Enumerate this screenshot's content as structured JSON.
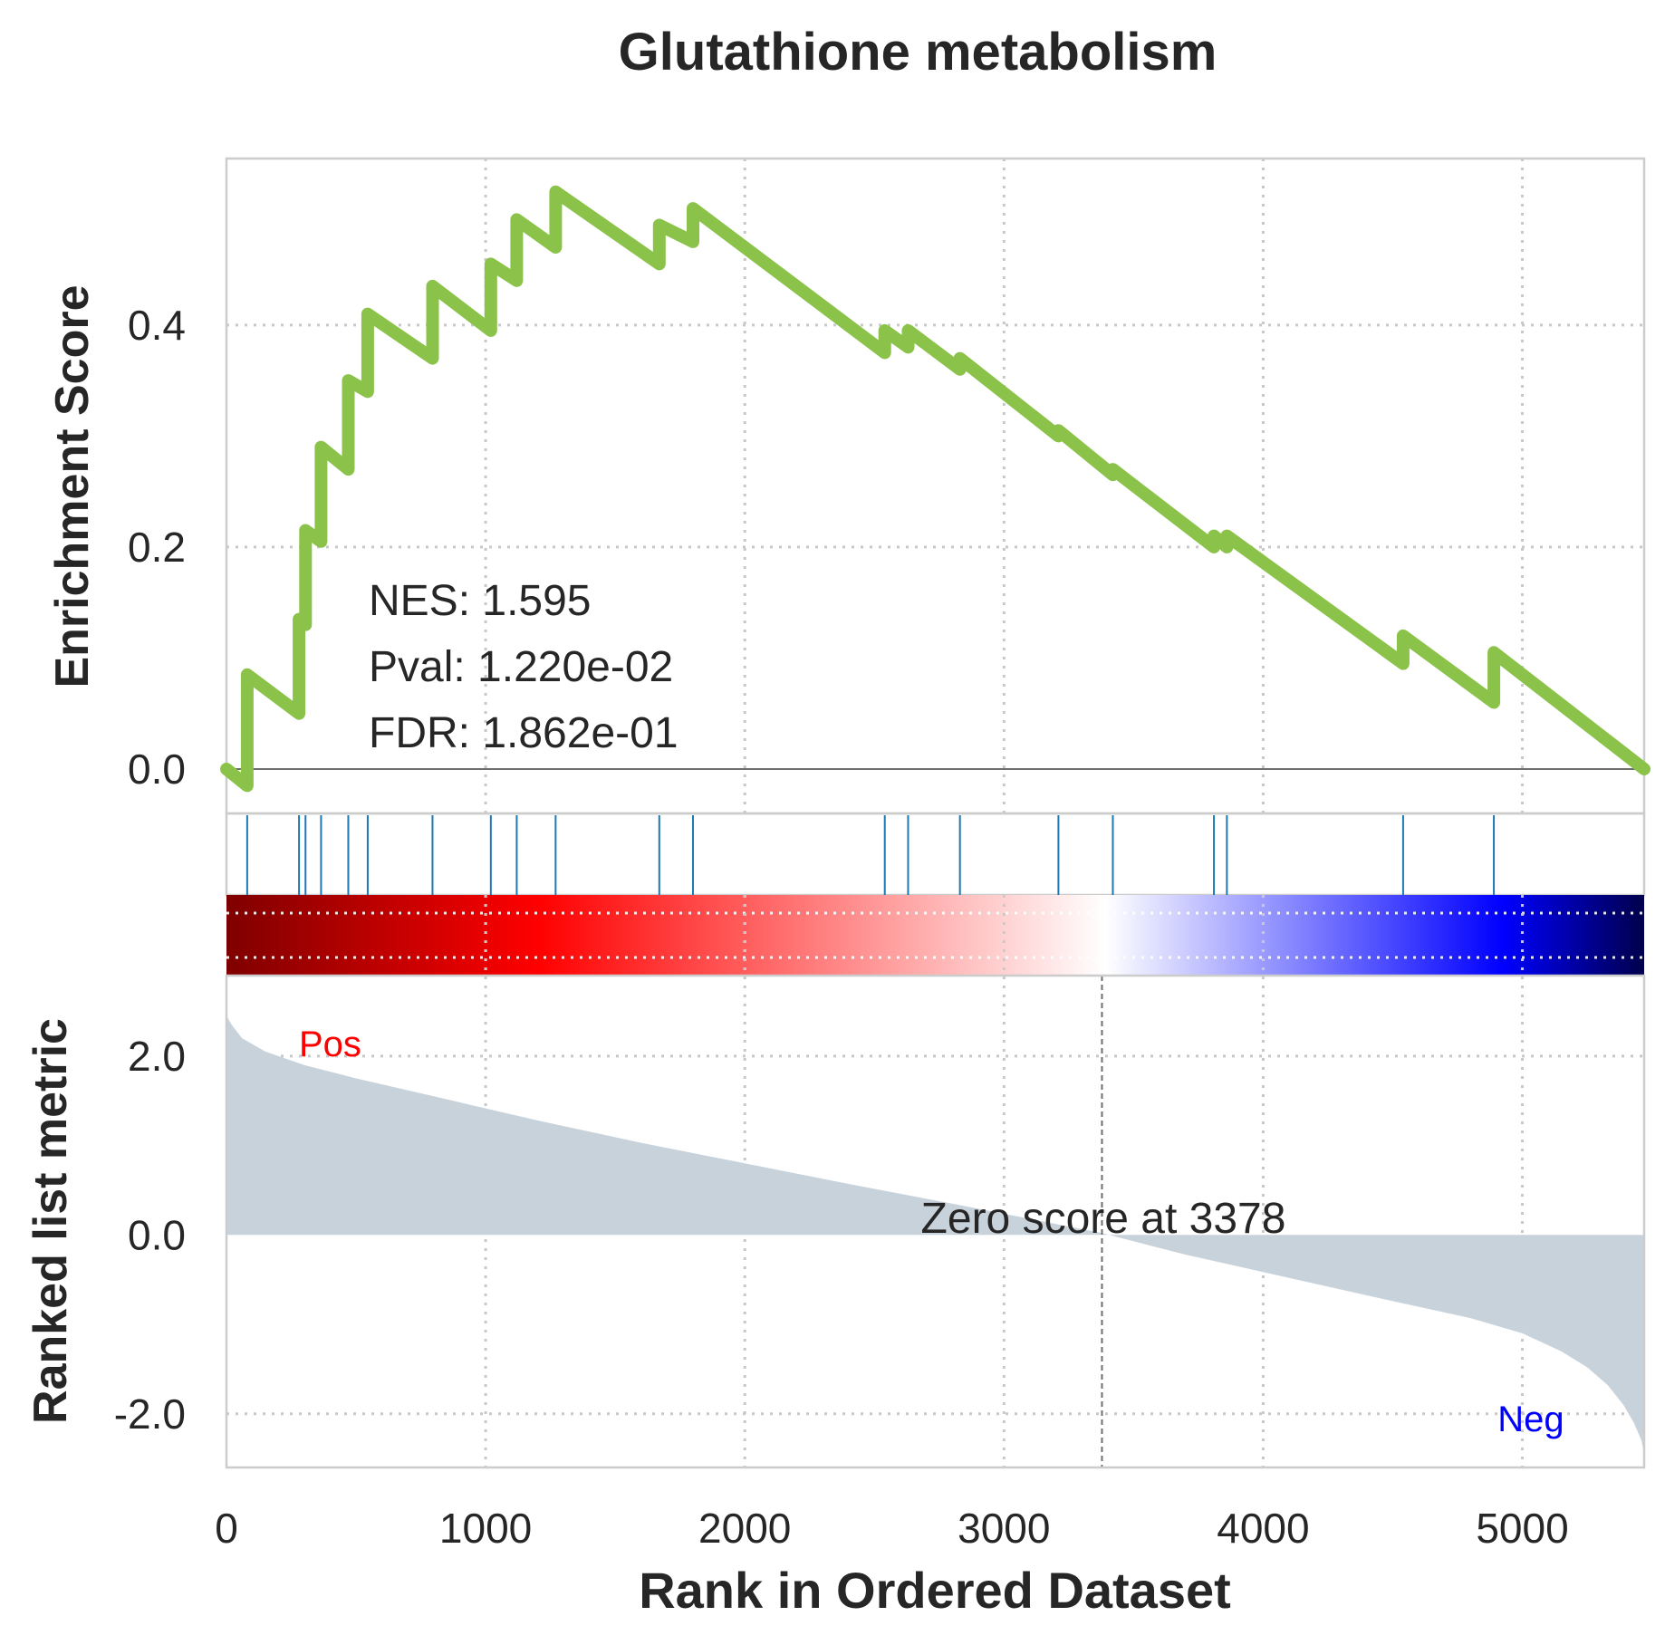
{
  "chart_data": {
    "type": "line",
    "title": "Glutathione metabolism",
    "xlabel": "Rank in Ordered Dataset",
    "xlim": [
      0,
      5470
    ],
    "x_ticks": [
      "0",
      "1000",
      "2000",
      "3000",
      "4000",
      "5000"
    ],
    "x_tick_values": [
      0,
      1000,
      2000,
      3000,
      4000,
      5000
    ],
    "grid": true,
    "es_panel": {
      "ylabel": "Enrichment Score",
      "ylim": [
        -0.04,
        0.55
      ],
      "y_ticks": [
        "0.0",
        "0.2",
        "0.4"
      ],
      "y_tick_values": [
        0.0,
        0.2,
        0.4
      ],
      "line_color": "#8bc34a",
      "series": [
        {
          "x": [
            0,
            80,
            80,
            280,
            280,
            305,
            305,
            365,
            365,
            470,
            470,
            545,
            545,
            795,
            795,
            1020,
            1020,
            1120,
            1120,
            1270,
            1270,
            1670,
            1670,
            1800,
            1800,
            2540,
            2540,
            2630,
            2630,
            2830,
            2830,
            3210,
            3210,
            3420,
            3420,
            3810,
            3810,
            3860,
            3860,
            4540,
            4540,
            4890,
            4890,
            5470
          ],
          "y": [
            0.0,
            -0.015,
            0.085,
            0.05,
            0.135,
            0.13,
            0.215,
            0.205,
            0.29,
            0.27,
            0.35,
            0.34,
            0.41,
            0.37,
            0.435,
            0.395,
            0.455,
            0.44,
            0.495,
            0.47,
            0.52,
            0.455,
            0.49,
            0.475,
            0.505,
            0.375,
            0.395,
            0.38,
            0.395,
            0.36,
            0.37,
            0.3,
            0.305,
            0.265,
            0.27,
            0.2,
            0.21,
            0.2,
            0.21,
            0.095,
            0.12,
            0.06,
            0.105,
            0.0
          ]
        }
      ],
      "stats": {
        "nes": "NES: 1.595",
        "pval": "Pval: 1.220e-02",
        "fdr": "FDR: 1.862e-01"
      }
    },
    "hits": {
      "color": "#1f77b4",
      "positions": [
        80,
        280,
        305,
        365,
        470,
        545,
        795,
        1020,
        1120,
        1270,
        1670,
        1800,
        2540,
        2630,
        2830,
        3210,
        3420,
        3810,
        3860,
        4540,
        4890
      ]
    },
    "heatmap_bar": {
      "colormap": "seismic",
      "colors": [
        "#00004c",
        "#0000ff",
        "#ffffff",
        "#ff0000",
        "#7f0000"
      ]
    },
    "rank_panel": {
      "ylabel": "Ranked list metric",
      "ylim": [
        -2.6,
        2.9
      ],
      "y_ticks": [
        "2.0",
        "0.0",
        "-2.0"
      ],
      "y_tick_values": [
        2.0,
        0.0,
        -2.0
      ],
      "fill_color": "#c8d2db",
      "curve": {
        "x": [
          0,
          20,
          60,
          150,
          300,
          500,
          800,
          1200,
          1600,
          2000,
          2400,
          2800,
          3100,
          3378,
          3700,
          4100,
          4500,
          4800,
          5000,
          5150,
          5250,
          5330,
          5390,
          5430,
          5460,
          5470
        ],
        "y": [
          2.45,
          2.35,
          2.2,
          2.05,
          1.9,
          1.75,
          1.55,
          1.28,
          1.03,
          0.8,
          0.57,
          0.35,
          0.18,
          0.02,
          -0.22,
          -0.48,
          -0.74,
          -0.93,
          -1.1,
          -1.3,
          -1.48,
          -1.68,
          -1.9,
          -2.1,
          -2.3,
          -2.45
        ]
      },
      "zero_cross": 3378,
      "zero_label": "Zero score at 3378",
      "pos_label": "Pos",
      "neg_label": "Neg",
      "pos_color": "#ff0000",
      "neg_color": "#0000ff"
    }
  }
}
